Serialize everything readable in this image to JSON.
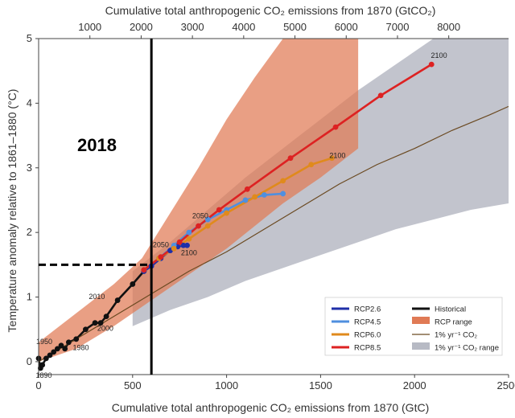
{
  "chart_data": {
    "type": "line",
    "top_axis": {
      "label": "Cumulative total anthropogenic CO₂ emissions from 1870 (GtCO₂)",
      "ticks": [
        "1000",
        "2000",
        "3000",
        "4000",
        "5000",
        "6000",
        "7000",
        "8000"
      ],
      "tick_values": [
        1000,
        2000,
        3000,
        4000,
        5000,
        6000,
        7000,
        8000
      ]
    },
    "x_axis": {
      "label": "Cumulative total anthropogenic CO₂ emissions from 1870 (GtC)",
      "ticks": [
        "0",
        "500",
        "1000",
        "1500",
        "2000",
        "2500"
      ],
      "tick_values": [
        0,
        500,
        1000,
        1500,
        2000,
        2500
      ],
      "range": [
        0,
        2500
      ]
    },
    "y_axis": {
      "label": "Temperature anomaly relative to 1861–1880 (°C)",
      "ticks": [
        "0",
        "1",
        "2",
        "3",
        "4",
        "5"
      ],
      "tick_values": [
        0,
        1,
        2,
        3,
        4,
        5
      ],
      "range": [
        -0.2,
        5
      ]
    },
    "annotation_year": "2018",
    "marker_line": {
      "x": 600,
      "y": 1.5
    },
    "colors": {
      "rcp26": "#1f2fa8",
      "rcp45": "#4f8fdf",
      "rcp60": "#e08a1c",
      "rcp85": "#dd2222",
      "historical": "#111111",
      "rcp_range": "#e07a55",
      "one_pct": "#6b4a22",
      "one_pct_range": "#b7bac4"
    },
    "legend": {
      "position": "bottom-right",
      "items": [
        {
          "label": "RCP2.6",
          "color": "#1f2fa8",
          "kind": "line"
        },
        {
          "label": "Historical",
          "color": "#111111",
          "kind": "line"
        },
        {
          "label": "RCP4.5",
          "color": "#4f8fdf",
          "kind": "line"
        },
        {
          "label": "RCP range",
          "color": "#e07a55",
          "kind": "patch"
        },
        {
          "label": "RCP6.0",
          "color": "#e08a1c",
          "kind": "line"
        },
        {
          "label": "1% yr⁻¹ CO₂",
          "color": "#6b4a22",
          "kind": "thin"
        },
        {
          "label": "RCP8.5",
          "color": "#dd2222",
          "kind": "line"
        },
        {
          "label": "1% yr⁻¹ CO₂ range",
          "color": "#b7bac4",
          "kind": "patch"
        }
      ]
    },
    "series": [
      {
        "name": "Historical",
        "color": "#111111",
        "x": [
          0,
          10,
          20,
          40,
          60,
          80,
          100,
          120,
          140,
          160,
          200,
          250,
          300,
          330,
          360,
          420,
          500,
          560
        ],
        "y": [
          0.05,
          -0.1,
          -0.05,
          0.05,
          0.1,
          0.15,
          0.2,
          0.25,
          0.2,
          0.3,
          0.35,
          0.5,
          0.6,
          0.6,
          0.7,
          0.95,
          1.2,
          1.4
        ],
        "year_labels": [
          {
            "text": "1890",
            "x": 28,
            "y": -0.25
          },
          {
            "text": "1950",
            "x": 30,
            "y": 0.27
          },
          {
            "text": "1980",
            "x": 225,
            "y": 0.18
          },
          {
            "text": "2000",
            "x": 355,
            "y": 0.48
          },
          {
            "text": "2010",
            "x": 310,
            "y": 0.97
          }
        ]
      },
      {
        "name": "RCP2.6",
        "color": "#1f2fa8",
        "x": [
          560,
          600,
          650,
          700,
          740,
          770,
          790
        ],
        "y": [
          1.4,
          1.48,
          1.6,
          1.72,
          1.78,
          1.8,
          1.8
        ],
        "year_labels": [
          {
            "text": "2050",
            "x": 650,
            "y": 1.77
          },
          {
            "text": "2100",
            "x": 800,
            "y": 1.65
          }
        ]
      },
      {
        "name": "RCP4.5",
        "color": "#4f8fdf",
        "x": [
          560,
          640,
          720,
          800,
          900,
          1000,
          1100,
          1200,
          1300
        ],
        "y": [
          1.42,
          1.6,
          1.8,
          2.0,
          2.2,
          2.35,
          2.5,
          2.58,
          2.6
        ],
        "year_labels": []
      },
      {
        "name": "RCP6.0",
        "color": "#e08a1c",
        "x": [
          560,
          640,
          720,
          800,
          900,
          1000,
          1150,
          1300,
          1450,
          1560
        ],
        "y": [
          1.42,
          1.6,
          1.75,
          1.9,
          2.1,
          2.3,
          2.55,
          2.8,
          3.05,
          3.15
        ],
        "year_labels": [
          {
            "text": "2100",
            "x": 1590,
            "y": 3.15
          }
        ]
      },
      {
        "name": "RCP8.5",
        "color": "#dd2222",
        "x": [
          560,
          650,
          750,
          850,
          960,
          1110,
          1340,
          1580,
          1820,
          2090
        ],
        "y": [
          1.42,
          1.62,
          1.85,
          2.1,
          2.35,
          2.67,
          3.15,
          3.63,
          4.12,
          4.6
        ],
        "year_labels": [
          {
            "text": "2050",
            "x": 860,
            "y": 2.22
          },
          {
            "text": "2100",
            "x": 2130,
            "y": 4.7
          }
        ]
      },
      {
        "name": "1% yr⁻¹ CO₂",
        "color": "#6b4a22",
        "x": [
          0,
          200,
          400,
          600,
          800,
          1000,
          1200,
          1400,
          1600,
          1800,
          2000,
          2200,
          2400,
          2500
        ],
        "y": [
          0.0,
          0.35,
          0.7,
          1.05,
          1.4,
          1.7,
          2.05,
          2.4,
          2.75,
          3.05,
          3.3,
          3.58,
          3.82,
          3.95
        ],
        "year_labels": []
      }
    ],
    "ranges": [
      {
        "name": "1% yr⁻¹ CO₂ range",
        "color": "#b7bac4",
        "x": [
          500,
          700,
          900,
          1100,
          1300,
          1500,
          1700,
          1900,
          2100,
          2300,
          2500
        ],
        "lower": [
          0.55,
          0.8,
          1.0,
          1.25,
          1.45,
          1.65,
          1.85,
          2.05,
          2.2,
          2.35,
          2.45
        ],
        "upper": [
          1.4,
          1.85,
          2.35,
          2.85,
          3.3,
          3.75,
          4.2,
          4.6,
          5.0,
          5.0,
          5.0
        ]
      },
      {
        "name": "RCP range",
        "color": "#e07a55",
        "x": [
          0,
          200,
          400,
          550,
          700,
          850,
          1000,
          1150,
          1300,
          1500,
          1700
        ],
        "lower": [
          0.0,
          0.2,
          0.55,
          0.85,
          1.15,
          1.45,
          1.75,
          2.1,
          2.45,
          2.85,
          3.3
        ],
        "upper": [
          0.3,
          0.75,
          1.2,
          1.6,
          2.3,
          3.0,
          3.75,
          4.4,
          5.0,
          5.0,
          5.0
        ]
      }
    ]
  }
}
